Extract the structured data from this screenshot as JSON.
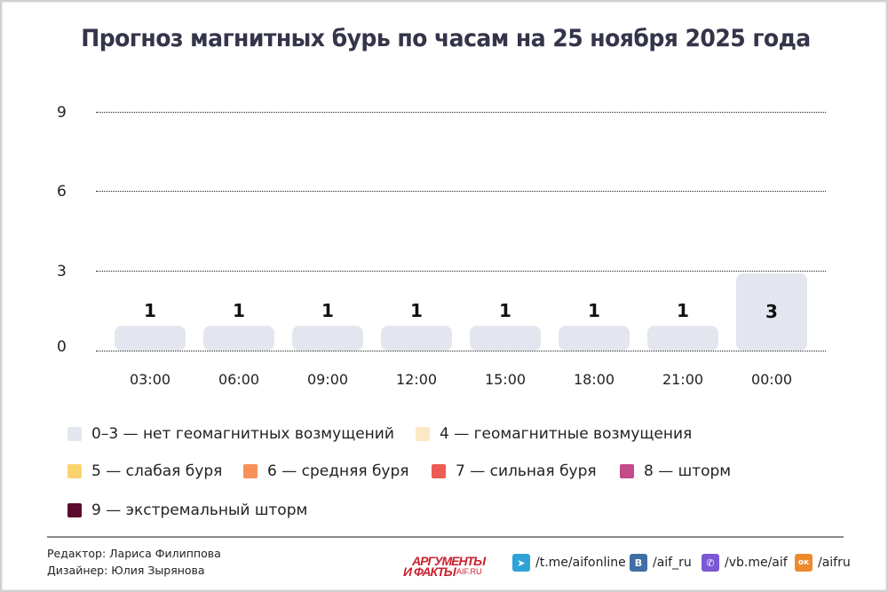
{
  "title": "Прогноз магнитных бурь по часам на 25 ноября 2025 года",
  "chart_data": {
    "type": "bar",
    "title": "Прогноз магнитных бурь по часам на 25 ноября 2025 года",
    "categories": [
      "03:00",
      "06:00",
      "09:00",
      "12:00",
      "15:00",
      "18:00",
      "21:00",
      "00:00"
    ],
    "values": [
      1,
      1,
      1,
      1,
      1,
      1,
      1,
      3
    ],
    "value_labels": [
      "1",
      "1",
      "1",
      "1",
      "1",
      "1",
      "1",
      "3"
    ],
    "xlabel": "",
    "ylabel": "",
    "ylim": [
      0,
      9
    ],
    "yticks": [
      "9",
      "6",
      "3",
      "0"
    ],
    "grid": true,
    "grid_style": "dotted",
    "bar_color": "#e4e6ef",
    "legend_position": "bottom",
    "legend": [
      {
        "label": "0–3 — нет геомагнитных возмущений",
        "color": "#e4e6ef"
      },
      {
        "label": "4 — геомагнитные возмущения",
        "color": "#fbe9c4"
      },
      {
        "label": "5 — слабая буря",
        "color": "#f9d46e"
      },
      {
        "label": "6 — средняя буря",
        "color": "#f7915a"
      },
      {
        "label": "7 — сильная буря",
        "color": "#ec5b54"
      },
      {
        "label": "8 — шторм",
        "color": "#c44a8a"
      },
      {
        "label": "9 — экстремальный шторм",
        "color": "#5a0b2e"
      }
    ]
  },
  "footer": {
    "editor": "Редактор: Лариса Филиппова",
    "designer": "Дизайнер: Юлия Зырянова",
    "logo": {
      "line1": "АРГУМЕНТЫ",
      "line2": "И ФАКТЫ",
      "sub": "AIF.RU"
    },
    "socials": [
      {
        "icon": "telegram-icon",
        "glyph": "➤",
        "label": "/t.me/aifonline",
        "color": "#2fa3d9"
      },
      {
        "icon": "vk-icon",
        "glyph": "В",
        "label": "/aif_ru",
        "color": "#3f6fa5"
      },
      {
        "icon": "viber-icon",
        "glyph": "✆",
        "label": "/vb.me/aif",
        "color": "#7b59d6"
      },
      {
        "icon": "odnoklassniki-icon",
        "glyph": "ок",
        "label": "/aifru",
        "color": "#ef8a2c"
      }
    ]
  }
}
